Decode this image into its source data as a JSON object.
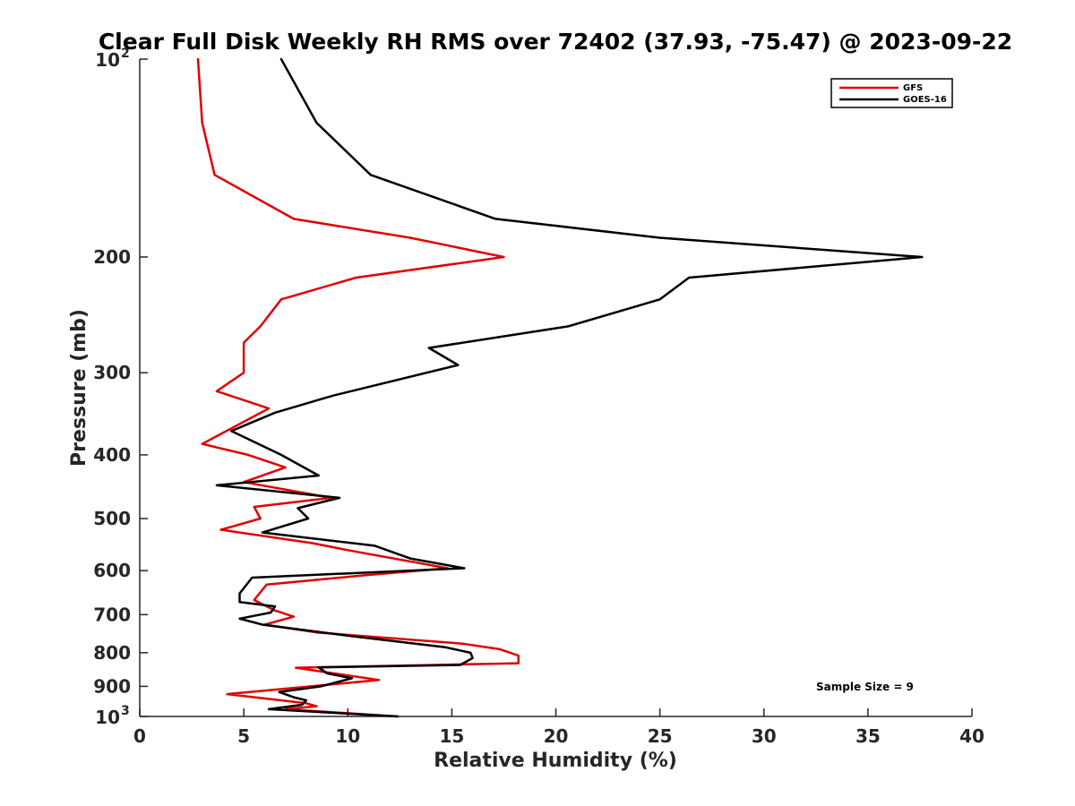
{
  "chart_data": {
    "type": "line",
    "title": "Clear Full Disk Weekly RH RMS over 72402 (37.93, -75.47) @ 2023-09-22",
    "xlabel": "Relative Humidity (%)",
    "ylabel": "Pressure (mb)",
    "xlim": [
      0,
      40
    ],
    "ylim": [
      100,
      1000
    ],
    "yscale": "log",
    "y_reversed": true,
    "x_ticks": [
      0,
      5,
      10,
      15,
      20,
      25,
      30,
      35,
      40
    ],
    "x_tick_labels": [
      "0",
      "5",
      "10",
      "15",
      "20",
      "25",
      "30",
      "35",
      "40"
    ],
    "y_ticks": [
      {
        "value": 100,
        "base": "10",
        "exp": "2"
      },
      {
        "value": 200,
        "label": "200"
      },
      {
        "value": 300,
        "label": "300"
      },
      {
        "value": 400,
        "label": "400"
      },
      {
        "value": 500,
        "label": "500"
      },
      {
        "value": 600,
        "label": "600"
      },
      {
        "value": 700,
        "label": "700"
      },
      {
        "value": 800,
        "label": "800"
      },
      {
        "value": 900,
        "label": "900"
      },
      {
        "value": 1000,
        "base": "10",
        "exp": "3"
      }
    ],
    "legend_position": "top-right",
    "annotation": "Sample Size = 9",
    "series": [
      {
        "name": "GFS",
        "color": "#e00000",
        "points": [
          [
            2.8,
            100
          ],
          [
            3.0,
            125
          ],
          [
            3.6,
            150
          ],
          [
            7.4,
            175
          ],
          [
            13.0,
            187
          ],
          [
            17.5,
            200
          ],
          [
            10.4,
            215
          ],
          [
            6.8,
            232
          ],
          [
            5.8,
            255
          ],
          [
            5.0,
            270
          ],
          [
            5.0,
            300
          ],
          [
            3.7,
            320
          ],
          [
            6.2,
            340
          ],
          [
            3.0,
            385
          ],
          [
            5.2,
            400
          ],
          [
            7.0,
            418
          ],
          [
            5.0,
            440
          ],
          [
            9.2,
            465
          ],
          [
            5.5,
            480
          ],
          [
            5.8,
            500
          ],
          [
            3.9,
            520
          ],
          [
            8.3,
            545
          ],
          [
            10.2,
            560
          ],
          [
            14.8,
            595
          ],
          [
            10.8,
            610
          ],
          [
            6.1,
            630
          ],
          [
            5.5,
            665
          ],
          [
            6.5,
            690
          ],
          [
            7.4,
            705
          ],
          [
            6.0,
            725
          ],
          [
            8.5,
            745
          ],
          [
            15.5,
            775
          ],
          [
            17.3,
            790
          ],
          [
            18.2,
            808
          ],
          [
            18.2,
            830
          ],
          [
            7.5,
            843
          ],
          [
            11.5,
            880
          ],
          [
            4.2,
            925
          ],
          [
            8.0,
            955
          ],
          [
            8.5,
            965
          ],
          [
            7.0,
            975
          ],
          [
            12.4,
            1000
          ]
        ]
      },
      {
        "name": "GOES-16",
        "color": "#000000",
        "points": [
          [
            6.8,
            100
          ],
          [
            8.5,
            125
          ],
          [
            11.1,
            150
          ],
          [
            17.1,
            175
          ],
          [
            25.0,
            187
          ],
          [
            37.6,
            200
          ],
          [
            26.4,
            215
          ],
          [
            25.0,
            232
          ],
          [
            20.6,
            255
          ],
          [
            13.9,
            275
          ],
          [
            15.3,
            292
          ],
          [
            9.3,
            325
          ],
          [
            6.5,
            345
          ],
          [
            4.4,
            368
          ],
          [
            6.8,
            400
          ],
          [
            8.6,
            430
          ],
          [
            3.7,
            445
          ],
          [
            9.6,
            465
          ],
          [
            7.6,
            482
          ],
          [
            8.1,
            500
          ],
          [
            5.9,
            525
          ],
          [
            11.3,
            550
          ],
          [
            13.0,
            575
          ],
          [
            15.6,
            595
          ],
          [
            5.4,
            615
          ],
          [
            4.8,
            650
          ],
          [
            4.8,
            670
          ],
          [
            6.5,
            680
          ],
          [
            6.3,
            695
          ],
          [
            4.8,
            710
          ],
          [
            5.9,
            725
          ],
          [
            10.2,
            755
          ],
          [
            14.7,
            785
          ],
          [
            15.9,
            800
          ],
          [
            16.0,
            815
          ],
          [
            15.4,
            835
          ],
          [
            8.6,
            842
          ],
          [
            9.0,
            860
          ],
          [
            10.2,
            875
          ],
          [
            8.7,
            900
          ],
          [
            6.7,
            918
          ],
          [
            7.4,
            935
          ],
          [
            8.0,
            945
          ],
          [
            7.8,
            960
          ],
          [
            6.2,
            975
          ],
          [
            12.4,
            1000
          ]
        ]
      }
    ]
  }
}
